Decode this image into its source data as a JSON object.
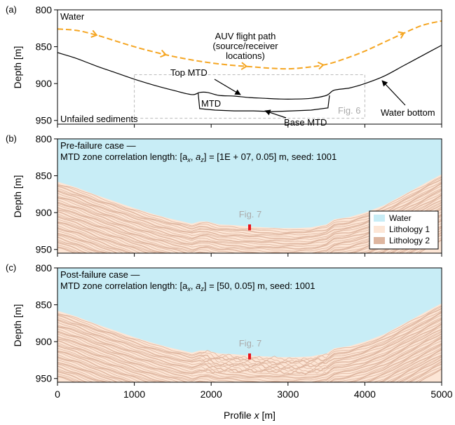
{
  "chart_data": [
    {
      "panel_label": "(a)",
      "type": "line",
      "ylabel": "Depth [m]",
      "xlim": [
        0,
        5000
      ],
      "ylim": [
        955,
        800
      ],
      "yticks": [
        800,
        850,
        900,
        950
      ],
      "labels": {
        "water": "Water",
        "unfailed": "Unfailed sediments",
        "auv": "AUV flight path",
        "auv_sub1": "(source/receiver",
        "auv_sub2": "locations)",
        "top_mtd": "Top MTD",
        "mtd": "MTD",
        "base_mtd": "Base MTD",
        "fig_ref": "Fig. 6",
        "water_bottom": "Water bottom"
      },
      "colors": {
        "auv": "#f5a623",
        "line": "#000000",
        "fig_box": "#bbbbbb"
      },
      "auv_path": {
        "x": [
          0,
          250,
          500,
          750,
          1000,
          1250,
          1500,
          1750,
          2000,
          2250,
          2500,
          2750,
          3000,
          3250,
          3500,
          3750,
          4000,
          4250,
          4500,
          4750,
          5000
        ],
        "y": [
          826,
          828,
          834,
          842,
          850,
          857,
          863,
          868,
          872,
          875,
          877,
          879,
          880,
          878,
          874,
          866,
          856,
          844,
          832,
          821,
          815
        ]
      },
      "auv_arrows_x": [
        500,
        1400,
        2450,
        3450,
        4500
      ],
      "water_bottom": {
        "x": [
          0,
          250,
          500,
          750,
          1000,
          1250,
          1500,
          1750,
          1850,
          1950,
          2100,
          2300,
          2500,
          2700,
          2900,
          3100,
          3300,
          3500,
          3600,
          3800,
          4000,
          4250,
          4500,
          4750,
          5000
        ],
        "y": [
          858,
          866,
          876,
          885,
          894,
          902,
          909,
          915,
          912,
          912,
          916,
          917,
          919,
          920,
          921,
          921,
          920,
          916,
          909,
          906,
          900,
          890,
          876,
          862,
          848
        ]
      },
      "base_mtd": {
        "x": [
          1830,
          1850,
          2050,
          2300,
          2550,
          2800,
          3050,
          3300,
          3520,
          3540
        ],
        "y": [
          912,
          934,
          936,
          937,
          937,
          938,
          937,
          936,
          933,
          916
        ]
      },
      "fig_box": {
        "x0": 1000,
        "x1": 4000,
        "y0": 888,
        "y1": 947
      }
    },
    {
      "panel_label": "(b)",
      "type": "heatmap",
      "ylabel": "Depth [m]",
      "xlim": [
        0,
        5000
      ],
      "ylim": [
        955,
        800
      ],
      "yticks": [
        800,
        850,
        900,
        950
      ],
      "caption_line1": "Pre-failure case —",
      "caption_line2": "MTD zone correlation length: [a",
      "x_sub": "x",
      "z_sub": "z",
      "caption_values": "] = [1E + 07, 0.05]",
      "caption_tail": " m, seed: 1001",
      "fig_ref": "Fig. 7",
      "fig_ref_marker": {
        "x": 2500,
        "y0": 916,
        "y1": 924
      },
      "legend": [
        {
          "label": "Water",
          "color": "#c8edf6"
        },
        {
          "label": "Lithology 1",
          "color": "#fde6d6"
        },
        {
          "label": "Lithology 2",
          "color": "#deb6a0"
        }
      ]
    },
    {
      "panel_label": "(c)",
      "type": "heatmap",
      "ylabel": "Depth [m]",
      "xlabel_pre": "Profile ",
      "xlabel_var": "x",
      "xlabel_post": " [m]",
      "xlim": [
        0,
        5000
      ],
      "ylim": [
        955,
        800
      ],
      "xticks": [
        0,
        1000,
        2000,
        3000,
        4000,
        5000
      ],
      "yticks": [
        800,
        850,
        900,
        950
      ],
      "caption_line1": "Post-failure case —",
      "caption_line2": "MTD zone correlation length: [a",
      "x_sub": "x",
      "z_sub": "z",
      "caption_values": "] = [50, 0.05]",
      "caption_tail": " m, seed: 1001",
      "fig_ref": "Fig. 7",
      "fig_ref_marker": {
        "x": 2500,
        "y0": 916,
        "y1": 924
      }
    }
  ]
}
